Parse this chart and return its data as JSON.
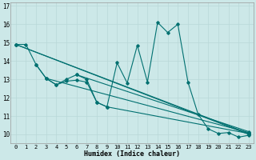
{
  "xlabel": "Humidex (Indice chaleur)",
  "background_color": "#cce8e8",
  "grid_color": "#b8d8d8",
  "line_color": "#007070",
  "xlim": [
    -0.5,
    23.5
  ],
  "ylim": [
    9.5,
    17.2
  ],
  "yticks": [
    10,
    11,
    12,
    13,
    14,
    15,
    16,
    17
  ],
  "xticks": [
    0,
    1,
    2,
    3,
    4,
    5,
    6,
    7,
    8,
    9,
    10,
    11,
    12,
    13,
    14,
    15,
    16,
    17,
    18,
    19,
    20,
    21,
    22,
    23
  ],
  "series": [
    {
      "x": [
        0,
        1,
        2,
        3,
        4,
        5,
        6,
        7,
        8,
        9,
        10,
        11,
        12,
        13,
        14,
        15,
        16,
        17,
        18,
        19,
        20,
        21,
        22,
        23
      ],
      "y": [
        14.9,
        14.9,
        13.8,
        13.05,
        12.7,
        13.0,
        13.25,
        13.0,
        11.75,
        11.5,
        13.9,
        12.8,
        14.85,
        12.85,
        16.1,
        15.55,
        16.0,
        12.85,
        11.1,
        10.3,
        10.05,
        10.1,
        9.85,
        9.95
      ]
    },
    {
      "x": [
        2,
        3,
        4,
        5,
        6,
        7,
        8,
        9,
        23
      ],
      "y": [
        13.8,
        13.05,
        12.7,
        12.9,
        12.95,
        12.85,
        11.75,
        11.5,
        10.05
      ]
    },
    {
      "x": [
        0,
        23
      ],
      "y": [
        14.9,
        10.0
      ]
    },
    {
      "x": [
        0,
        23
      ],
      "y": [
        14.9,
        10.05
      ]
    },
    {
      "x": [
        3,
        23
      ],
      "y": [
        13.05,
        10.1
      ]
    },
    {
      "x": [
        6,
        23
      ],
      "y": [
        13.25,
        10.15
      ]
    }
  ]
}
